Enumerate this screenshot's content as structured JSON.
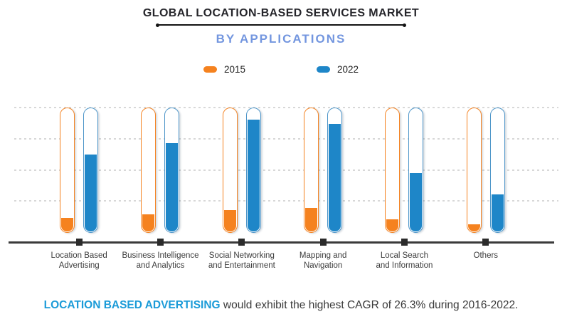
{
  "header": {
    "title": "GLOBAL LOCATION-BASED SERVICES MARKET",
    "subtitle": "BY APPLICATIONS"
  },
  "legend": [
    {
      "label": "2015",
      "color": "#f5821f"
    },
    {
      "label": "2022",
      "color": "#1e86c8"
    }
  ],
  "chart_data": {
    "type": "bar",
    "variant": "thermometer-capsule",
    "title": "GLOBAL LOCATION-BASED SERVICES MARKET",
    "subtitle": "BY APPLICATIONS",
    "categories": [
      "Location Based Advertising",
      "Business Intelligence and Analytics",
      "Social Networking and Entertainment",
      "Mapping and Navigation",
      "Local Search and Information",
      "Others"
    ],
    "categories_lines": [
      [
        "Location Based",
        "Advertising"
      ],
      [
        "Business Intelligence",
        "and Analytics"
      ],
      [
        "Social Networking",
        "and Entertainment"
      ],
      [
        "Mapping and",
        "Navigation"
      ],
      [
        "Local Search",
        "and Information"
      ],
      [
        "Others"
      ]
    ],
    "series": [
      {
        "name": "2015",
        "color": "#f5821f",
        "outline": "#f5821f",
        "fill_percent": [
          11,
          14,
          17,
          19,
          10,
          6
        ]
      },
      {
        "name": "2022",
        "color": "#1e86c8",
        "outline": "#4e96c9",
        "fill_percent": [
          62,
          71,
          90,
          87,
          47,
          30
        ]
      }
    ],
    "ylim": [
      0,
      100
    ],
    "unit": "percent of bar height (no numeric axis shown)",
    "grid": "horizontal-dashed",
    "gridline_levels_percent": [
      100,
      75,
      50,
      25
    ],
    "legend_position": "top",
    "annotation": "LOCATION BASED ADVERTISING would exhibit the highest CAGR of 26.3% during 2016-2022."
  },
  "footer": {
    "highlight": "LOCATION BASED ADVERTISING",
    "text": " would exhibit the highest CAGR of 26.3% during 2016-2022."
  },
  "colors": {
    "accent_orange": "#f5821f",
    "accent_blue": "#1e86c8",
    "subtitle_blue": "#7396df",
    "footer_blue": "#1b9bd8",
    "axis": "#3b3b3b",
    "grid": "#d8d8d8",
    "title_text": "#26262b"
  }
}
